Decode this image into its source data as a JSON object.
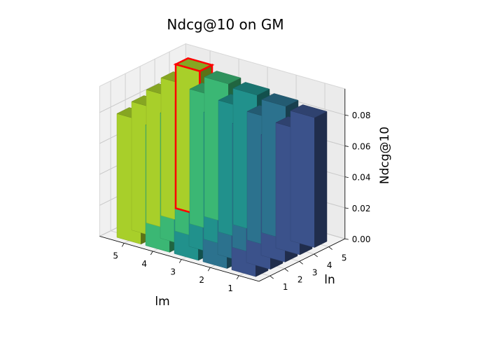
{
  "chart_data": {
    "type": "bar3d",
    "title": "Ndcg@10 on GM",
    "xlabel": "lm",
    "ylabel": "ln",
    "zlabel": "Ndcg@10",
    "x_categories": [
      "1",
      "2",
      "3",
      "4",
      "5"
    ],
    "y_categories": [
      "1",
      "2",
      "3",
      "4",
      "5"
    ],
    "zlim": [
      0,
      0.095
    ],
    "z_ticks": [
      "0.00",
      "0.02",
      "0.04",
      "0.06",
      "0.08"
    ],
    "values": [
      [
        0.072,
        0.075,
        0.078,
        0.081,
        0.084
      ],
      [
        0.074,
        0.077,
        0.08,
        0.083,
        0.086
      ],
      [
        0.076,
        0.079,
        0.082,
        0.085,
        0.088
      ],
      [
        0.078,
        0.081,
        0.084,
        0.087,
        0.09
      ],
      [
        0.08,
        0.083,
        0.086,
        0.089,
        0.093
      ]
    ],
    "colormap": [
      "#3b528b",
      "#2c728e",
      "#21918c",
      "#3bb774",
      "#a8cf2a"
    ],
    "highlight": {
      "lm": "5",
      "ln": "5",
      "color": "#ff0000"
    },
    "grid": true
  }
}
